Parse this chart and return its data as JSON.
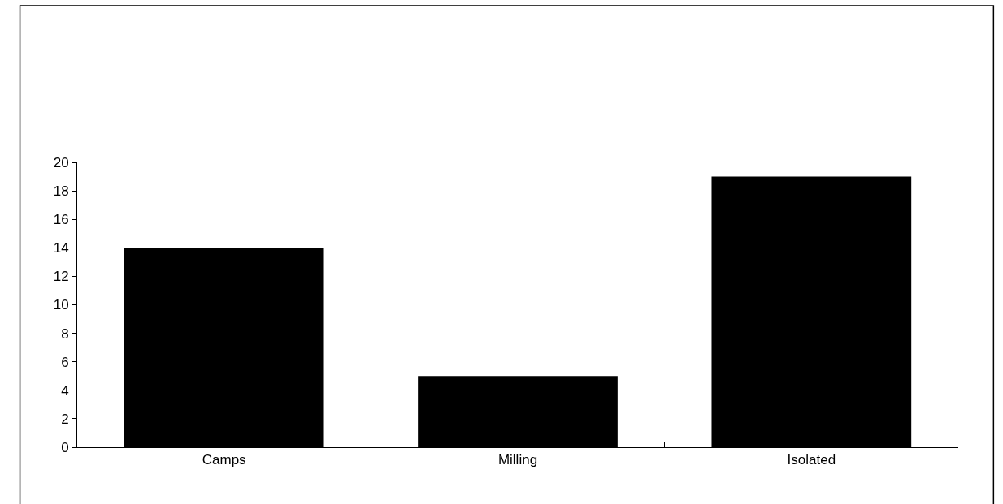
{
  "chart_data": {
    "type": "bar",
    "categories": [
      "Camps",
      "Milling",
      "Isolated"
    ],
    "values": [
      14,
      5,
      19
    ],
    "color": "#000000",
    "ylim": [
      0,
      20
    ],
    "yticks": [
      0,
      2,
      4,
      6,
      8,
      10,
      12,
      14,
      16,
      18,
      20
    ]
  }
}
